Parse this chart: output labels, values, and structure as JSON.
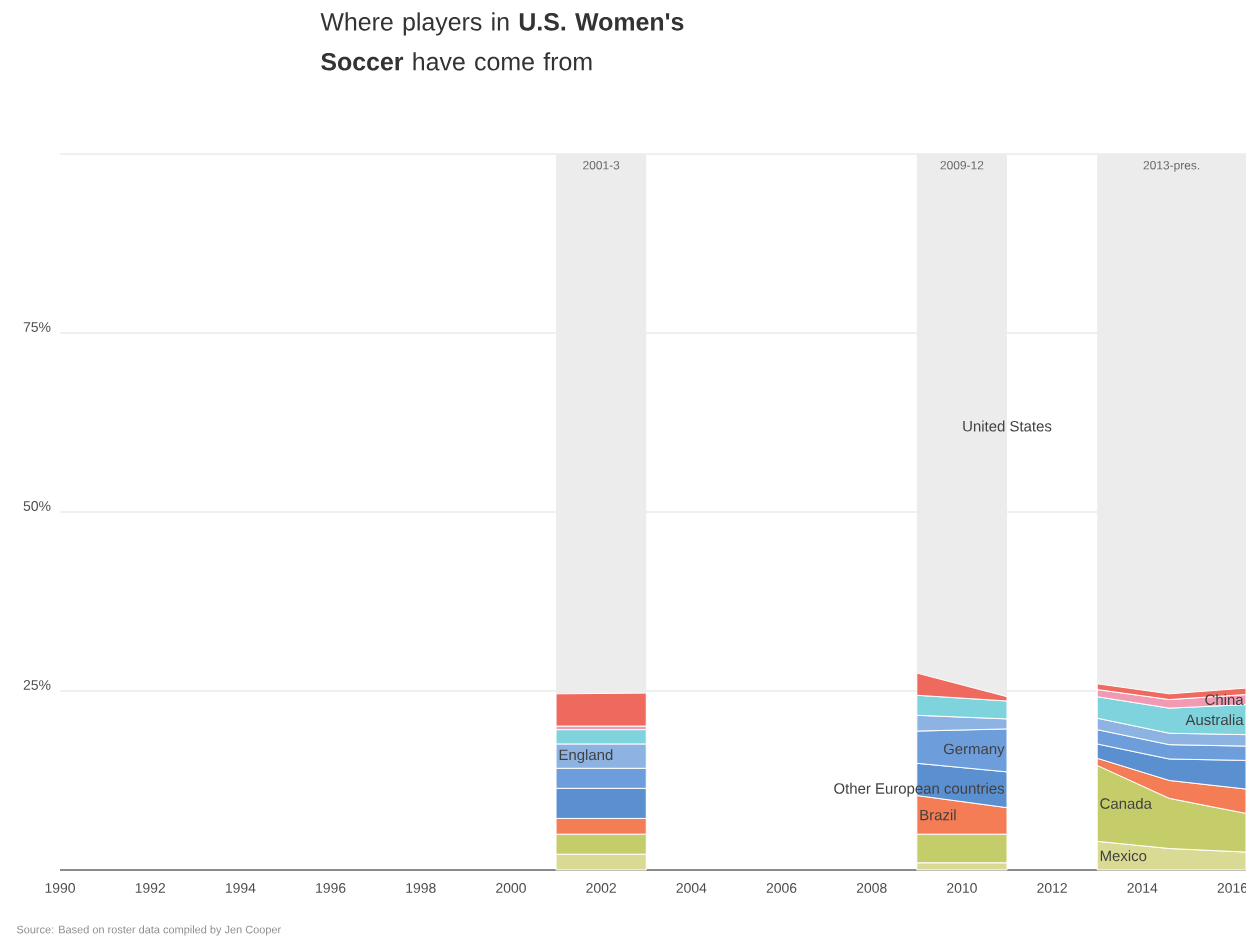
{
  "chart_data": {
    "type": "area",
    "stacked": true,
    "title": "Where players in **U.S. Women's Soccer** have come from",
    "x": [
      2001,
      2003,
      2006,
      2009,
      2011,
      2012,
      2013,
      2014.6,
      2016.3
    ],
    "series": [
      {
        "name": "Mexico",
        "color": "#d9db94",
        "values": [
          2.2,
          2.2,
          null,
          1,
          1,
          null,
          4,
          3,
          2.5
        ]
      },
      {
        "name": "Canada",
        "color": "#c5cc6a",
        "values": [
          2.8,
          2.8,
          null,
          4,
          4,
          null,
          10.6,
          7,
          5.4
        ]
      },
      {
        "name": "Brazil",
        "color": "#f47d55",
        "values": [
          2.2,
          2.2,
          null,
          5.4,
          3.7,
          null,
          1,
          2.5,
          3.4
        ]
      },
      {
        "name": "Other European countries",
        "color": "#5a8fd0",
        "values": [
          4.2,
          4.2,
          null,
          4.5,
          5,
          null,
          2,
          3,
          4
        ]
      },
      {
        "name": "Germany",
        "color": "#6d9ddb",
        "values": [
          2.8,
          2.8,
          null,
          4.5,
          6,
          null,
          2,
          2,
          2
        ]
      },
      {
        "name": "England",
        "color": "#8db3e2",
        "values": [
          3.4,
          3.4,
          null,
          2.2,
          1.4,
          null,
          1.6,
          1.6,
          1.6
        ]
      },
      {
        "name": "Australia",
        "color": "#7fd3dc",
        "values": [
          2,
          2,
          null,
          2.8,
          2.5,
          null,
          3,
          3.5,
          4.2
        ]
      },
      {
        "name": "China",
        "color": "#f29ab4",
        "values": [
          0.5,
          0.5,
          null,
          null,
          null,
          null,
          1,
          1.2,
          1.4
        ]
      },
      {
        "color": "#ef6a5e",
        "values": [
          4.5,
          4.6,
          null,
          3.1,
          0.6,
          null,
          0.8,
          0.8,
          0.9
        ]
      }
    ],
    "xlim": [
      1990,
      2016.3
    ],
    "xticks": [
      1990,
      1992,
      1994,
      1996,
      1998,
      2000,
      2002,
      2004,
      2006,
      2008,
      2010,
      2012,
      2014,
      2016
    ],
    "ylim": [
      0,
      100
    ],
    "yticks": [
      {
        "value": 0,
        "label": null
      },
      {
        "value": 25,
        "label": "25%"
      },
      {
        "value": 50,
        "label": "50%"
      },
      {
        "value": 75,
        "label": "75%"
      },
      {
        "value": 100,
        "label": null
      }
    ],
    "grid": "y",
    "bands": [
      {
        "axis": "x",
        "from": 2001,
        "to": 2003,
        "label": "2001-3",
        "color": "#ececec"
      },
      {
        "axis": "x",
        "from": 2009,
        "to": 2011,
        "label": "2009-12",
        "color": "#ececec"
      },
      {
        "axis": "x",
        "from": 2013,
        "to": 2016.3,
        "label": "2013-pres.",
        "color": "#ececec"
      }
    ],
    "annotations": [
      {
        "text": "United States",
        "x": 2011,
        "y": 62
      },
      "Source: Based on roster data compiled by Jen Cooper"
    ]
  }
}
